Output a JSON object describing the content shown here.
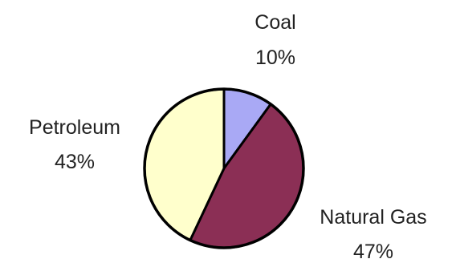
{
  "chart_data": {
    "type": "pie",
    "title": "",
    "legend": "none",
    "slices": [
      {
        "label": "Coal",
        "value": 10,
        "value_label": "10%",
        "color": "#a9a9f5"
      },
      {
        "label": "Natural Gas",
        "value": 47,
        "value_label": "47%",
        "color": "#8b2f55"
      },
      {
        "label": "Petroleum",
        "value": 43,
        "value_label": "43%",
        "color": "#ffffcc"
      }
    ]
  }
}
